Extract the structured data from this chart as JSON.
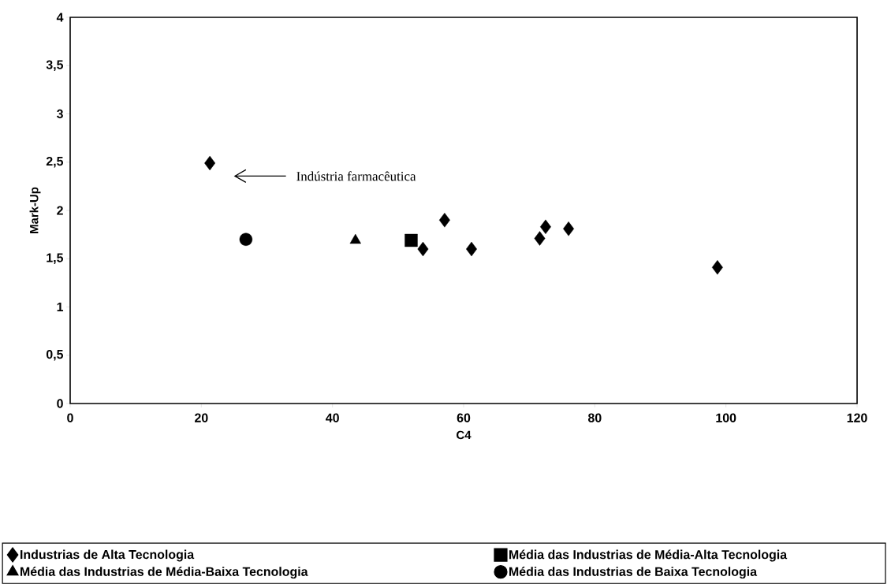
{
  "chart_data": {
    "type": "scatter",
    "xlabel": "C4",
    "ylabel": "Mark-Up",
    "xlim": [
      0,
      120
    ],
    "ylim": [
      0,
      4
    ],
    "xticks": [
      0,
      20,
      40,
      60,
      80,
      100,
      120
    ],
    "yticks": [
      0,
      {
        "value": 0.5,
        "label": "0,5"
      },
      1,
      {
        "value": 1.5,
        "label": "1,5"
      },
      2,
      {
        "value": 2.5,
        "label": "2,5"
      },
      3,
      {
        "value": 3.5,
        "label": "3,5"
      },
      4
    ],
    "grid": false,
    "legend": "bottom",
    "series": [
      {
        "name": "Industrias de Alta Tecnologia",
        "color": "#000000",
        "marker": "diamond",
        "x": [
          21.3,
          53.8,
          57.1,
          61.2,
          71.6,
          72.5,
          76.0,
          98.7
        ],
        "values": [
          2.49,
          1.6,
          1.9,
          1.6,
          1.71,
          1.83,
          1.81,
          1.41
        ]
      },
      {
        "name": "Média das Industrias de Média-Alta Tecnologia",
        "color": "#000000",
        "marker": "square",
        "x": [
          52.0
        ],
        "values": [
          1.69
        ]
      },
      {
        "name": "Média das Industrias de Média-Baixa Tecnologia",
        "color": "#000000",
        "marker": "triangle",
        "x": [
          43.5
        ],
        "values": [
          1.69
        ]
      },
      {
        "name": "Média das Industrias de Baixa Tecnologia",
        "color": "#000000",
        "marker": "circle",
        "x": [
          26.8
        ],
        "values": [
          1.7
        ]
      }
    ],
    "annotations": [
      "Indústria farmacêutica"
    ]
  }
}
